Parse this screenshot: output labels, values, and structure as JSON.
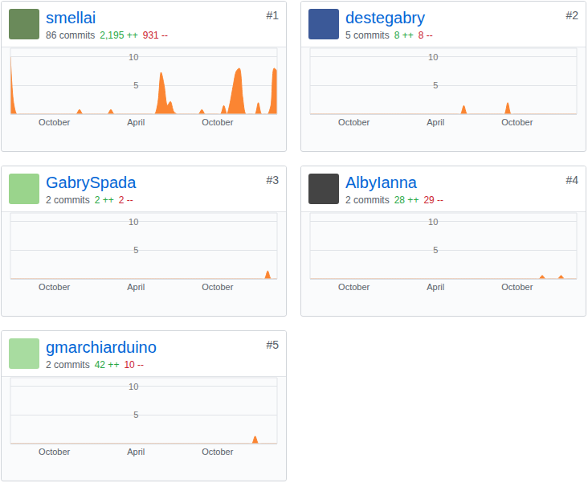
{
  "chart_data": [
    {
      "type": "area",
      "title": "smellai",
      "color": "#fb8532",
      "grid": true,
      "annotations": [
        {
          "text": "#1"
        },
        {
          "text": "86 commits"
        },
        {
          "text": "2,195 ++",
          "color": "#28a745"
        },
        {
          "text": "931 --",
          "color": "#cb2431"
        }
      ],
      "categories": [
        null,
        null,
        null,
        null,
        null,
        null,
        null,
        null,
        null,
        null,
        null,
        null,
        null,
        null,
        "October",
        null,
        null,
        null,
        null,
        null,
        null,
        null,
        null,
        null,
        null,
        null,
        null,
        null,
        null,
        null,
        null,
        null,
        null,
        null,
        null,
        null,
        null,
        null,
        null,
        null,
        "April",
        null,
        null,
        null,
        null,
        null,
        null,
        null,
        null,
        null,
        null,
        null,
        null,
        null,
        null,
        null,
        null,
        null,
        null,
        null,
        null,
        null,
        null,
        null,
        null,
        null,
        "October",
        null,
        null,
        null,
        null,
        null,
        null,
        null,
        null,
        null,
        null,
        null,
        null,
        null,
        null,
        null,
        null,
        null,
        null,
        null
      ],
      "values": [
        10,
        2,
        0,
        0,
        0,
        0,
        0,
        0,
        0,
        0,
        0,
        0,
        0,
        0,
        0,
        0,
        0,
        0,
        0,
        0,
        0,
        0,
        0.8,
        0,
        0,
        0,
        0,
        0,
        0,
        0,
        0,
        0,
        0.8,
        0,
        0,
        0,
        0,
        0,
        0,
        0,
        0,
        0,
        0,
        0,
        0,
        0,
        0,
        2,
        7.3,
        5,
        1.5,
        2.2,
        0.5,
        0,
        0,
        0,
        0,
        0,
        0,
        0,
        0,
        0.8,
        0,
        0,
        0,
        0,
        0,
        0,
        1.5,
        0,
        2,
        5,
        7.5,
        8,
        3,
        0,
        0,
        0,
        0,
        2,
        0,
        0,
        0,
        1.5,
        8,
        7.5
      ],
      "ylim": [
        0,
        11.5
      ],
      "yticks": [
        5,
        10
      ]
    },
    {
      "type": "area",
      "title": "destegabry",
      "color": "#fb8532",
      "grid": true,
      "annotations": [
        {
          "text": "#2"
        },
        {
          "text": "5 commits"
        },
        {
          "text": "8 ++",
          "color": "#28a745"
        },
        {
          "text": "8 --",
          "color": "#cb2431"
        }
      ],
      "categories": [
        null,
        null,
        null,
        null,
        null,
        null,
        null,
        null,
        null,
        null,
        null,
        null,
        null,
        null,
        "October",
        null,
        null,
        null,
        null,
        null,
        null,
        null,
        null,
        null,
        null,
        null,
        null,
        null,
        null,
        null,
        null,
        null,
        null,
        null,
        null,
        null,
        null,
        null,
        null,
        null,
        "April",
        null,
        null,
        null,
        null,
        null,
        null,
        null,
        null,
        null,
        null,
        null,
        null,
        null,
        null,
        null,
        null,
        null,
        null,
        null,
        null,
        null,
        null,
        null,
        null,
        null,
        "October",
        null,
        null,
        null,
        null,
        null,
        null,
        null,
        null,
        null,
        null,
        null,
        null,
        null,
        null,
        null,
        null,
        null,
        null,
        null
      ],
      "values": [
        0,
        0,
        0,
        0,
        0,
        0,
        0,
        0,
        0,
        0,
        0,
        0,
        0,
        0,
        0,
        0,
        0,
        0,
        0,
        0,
        0,
        0,
        0,
        0,
        0,
        0,
        0,
        0,
        0,
        0,
        0,
        0,
        0,
        0,
        0,
        0,
        0,
        0,
        0,
        0,
        0,
        0,
        0,
        0,
        0,
        0,
        0,
        0,
        0,
        1.5,
        0,
        0,
        0,
        0,
        0,
        0,
        0,
        0,
        0,
        0,
        0,
        0,
        0,
        2,
        0,
        0,
        0,
        0,
        0,
        0,
        0,
        0,
        0,
        0,
        0,
        0,
        0,
        0,
        0,
        0,
        0,
        0,
        0,
        0,
        0,
        0
      ],
      "ylim": [
        0,
        11.5
      ],
      "yticks": [
        5,
        10
      ]
    },
    {
      "type": "area",
      "title": "GabrySpada",
      "color": "#fb8532",
      "grid": true,
      "annotations": [
        {
          "text": "#3"
        },
        {
          "text": "2 commits"
        },
        {
          "text": "2 ++",
          "color": "#28a745"
        },
        {
          "text": "2 --",
          "color": "#cb2431"
        }
      ],
      "categories": [
        null,
        null,
        null,
        null,
        null,
        null,
        null,
        null,
        null,
        null,
        null,
        null,
        null,
        null,
        "October",
        null,
        null,
        null,
        null,
        null,
        null,
        null,
        null,
        null,
        null,
        null,
        null,
        null,
        null,
        null,
        null,
        null,
        null,
        null,
        null,
        null,
        null,
        null,
        null,
        null,
        "April",
        null,
        null,
        null,
        null,
        null,
        null,
        null,
        null,
        null,
        null,
        null,
        null,
        null,
        null,
        null,
        null,
        null,
        null,
        null,
        null,
        null,
        null,
        null,
        null,
        null,
        "October",
        null,
        null,
        null,
        null,
        null,
        null,
        null,
        null,
        null,
        null,
        null,
        null,
        null,
        null,
        null,
        null,
        null,
        null,
        null
      ],
      "values": [
        0,
        0,
        0,
        0,
        0,
        0,
        0,
        0,
        0,
        0,
        0,
        0,
        0,
        0,
        0,
        0,
        0,
        0,
        0,
        0,
        0,
        0,
        0,
        0,
        0,
        0,
        0,
        0,
        0,
        0,
        0,
        0,
        0,
        0,
        0,
        0,
        0,
        0,
        0,
        0,
        0,
        0,
        0,
        0,
        0,
        0,
        0,
        0,
        0,
        0,
        0,
        0,
        0,
        0,
        0,
        0,
        0,
        0,
        0,
        0,
        0,
        0,
        0,
        0,
        0,
        0,
        0,
        0,
        0,
        0,
        0,
        0,
        0,
        0,
        0,
        0,
        0,
        0,
        0,
        0,
        0,
        0,
        1.4,
        0,
        0,
        0
      ],
      "ylim": [
        0,
        11.5
      ],
      "yticks": [
        5,
        10
      ]
    },
    {
      "type": "area",
      "title": "AlbyIanna",
      "color": "#fb8532",
      "grid": true,
      "annotations": [
        {
          "text": "#4"
        },
        {
          "text": "2 commits"
        },
        {
          "text": "28 ++",
          "color": "#28a745"
        },
        {
          "text": "29 --",
          "color": "#cb2431"
        }
      ],
      "categories": [
        null,
        null,
        null,
        null,
        null,
        null,
        null,
        null,
        null,
        null,
        null,
        null,
        null,
        null,
        "October",
        null,
        null,
        null,
        null,
        null,
        null,
        null,
        null,
        null,
        null,
        null,
        null,
        null,
        null,
        null,
        null,
        null,
        null,
        null,
        null,
        null,
        null,
        null,
        null,
        null,
        "April",
        null,
        null,
        null,
        null,
        null,
        null,
        null,
        null,
        null,
        null,
        null,
        null,
        null,
        null,
        null,
        null,
        null,
        null,
        null,
        null,
        null,
        null,
        null,
        null,
        null,
        "October",
        null,
        null,
        null,
        null,
        null,
        null,
        null,
        null,
        null,
        null,
        null,
        null,
        null,
        null,
        null,
        null,
        null,
        null,
        null
      ],
      "values": [
        0,
        0,
        0,
        0,
        0,
        0,
        0,
        0,
        0,
        0,
        0,
        0,
        0,
        0,
        0,
        0,
        0,
        0,
        0,
        0,
        0,
        0,
        0,
        0,
        0,
        0,
        0,
        0,
        0,
        0,
        0,
        0,
        0,
        0,
        0,
        0,
        0,
        0,
        0,
        0,
        0,
        0,
        0,
        0,
        0,
        0,
        0,
        0,
        0,
        0,
        0,
        0,
        0,
        0,
        0,
        0,
        0,
        0,
        0,
        0,
        0,
        0,
        0,
        0,
        0,
        0,
        0,
        0,
        0,
        0,
        0,
        0,
        0,
        0,
        0.6,
        0,
        0,
        0,
        0,
        0,
        0.6,
        0,
        0,
        0,
        0,
        0
      ],
      "ylim": [
        0,
        11.5
      ],
      "yticks": [
        5,
        10
      ]
    },
    {
      "type": "area",
      "title": "gmarchiarduino",
      "color": "#fb8532",
      "grid": true,
      "annotations": [
        {
          "text": "#5"
        },
        {
          "text": "2 commits"
        },
        {
          "text": "42 ++",
          "color": "#28a745"
        },
        {
          "text": "10 --",
          "color": "#cb2431"
        }
      ],
      "categories": [
        null,
        null,
        null,
        null,
        null,
        null,
        null,
        null,
        null,
        null,
        null,
        null,
        null,
        null,
        "October",
        null,
        null,
        null,
        null,
        null,
        null,
        null,
        null,
        null,
        null,
        null,
        null,
        null,
        null,
        null,
        null,
        null,
        null,
        null,
        null,
        null,
        null,
        null,
        null,
        null,
        "April",
        null,
        null,
        null,
        null,
        null,
        null,
        null,
        null,
        null,
        null,
        null,
        null,
        null,
        null,
        null,
        null,
        null,
        null,
        null,
        null,
        null,
        null,
        null,
        null,
        null,
        "October",
        null,
        null,
        null,
        null,
        null,
        null,
        null,
        null,
        null,
        null,
        null,
        null,
        null,
        null,
        null,
        null,
        null,
        null,
        null
      ],
      "values": [
        0,
        0,
        0,
        0,
        0,
        0,
        0,
        0,
        0,
        0,
        0,
        0,
        0,
        0,
        0,
        0,
        0,
        0,
        0,
        0,
        0,
        0,
        0,
        0,
        0,
        0,
        0,
        0,
        0,
        0,
        0,
        0,
        0,
        0,
        0,
        0,
        0,
        0,
        0,
        0,
        0,
        0,
        0,
        0,
        0,
        0,
        0,
        0,
        0,
        0,
        0,
        0,
        0,
        0,
        0,
        0,
        0,
        0,
        0,
        0,
        0,
        0,
        0,
        0,
        0,
        0,
        0,
        0,
        0,
        0,
        0,
        0,
        0,
        0,
        0,
        0,
        0,
        0,
        1.3,
        0,
        0,
        0,
        0,
        0,
        0,
        0
      ],
      "ylim": [
        0,
        11.5
      ],
      "yticks": [
        5,
        10
      ]
    }
  ]
}
